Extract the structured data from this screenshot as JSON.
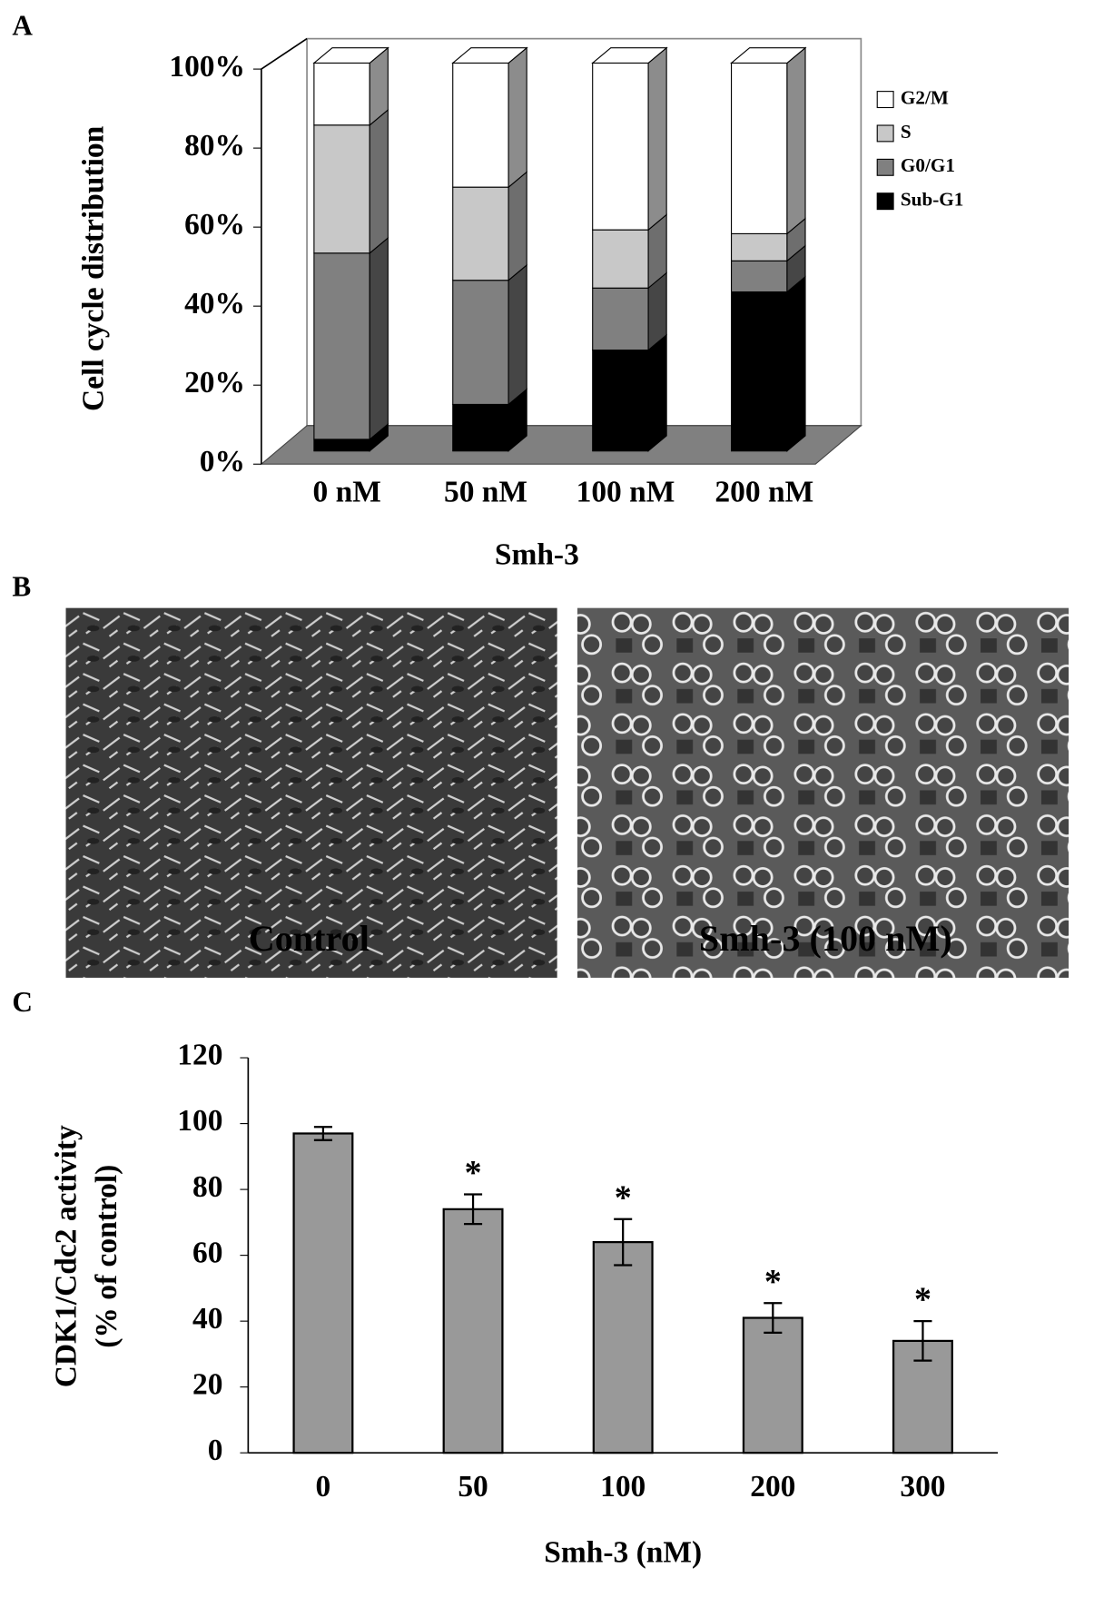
{
  "panel_labels": [
    "A",
    "B",
    "C"
  ],
  "images": [
    {
      "label": "Control"
    },
    {
      "label": "Smh-3 (100 nM)"
    }
  ],
  "chart_data": [
    {
      "type": "stacked-bar-3d",
      "xlabel": "Smh-3",
      "ylabel": "Cell cycle distribution",
      "categories": [
        "0 nM",
        "50 nM",
        "100 nM",
        "200 nM"
      ],
      "series": [
        {
          "name": "G2/M",
          "color": "#ffffff",
          "values": [
            16,
            32,
            43,
            44
          ]
        },
        {
          "name": "S",
          "color": "#c8c8c8",
          "values": [
            33,
            24,
            15,
            7
          ]
        },
        {
          "name": "G0/G1",
          "color": "#808080",
          "values": [
            48,
            32,
            16,
            8
          ]
        },
        {
          "name": "Sub-G1",
          "color": "#000000",
          "values": [
            3,
            12,
            26,
            41
          ]
        }
      ],
      "ylim": [
        0,
        100
      ],
      "yticks": [
        {
          "value": 0,
          "label": "0%"
        },
        {
          "value": 20,
          "label": "20%"
        },
        {
          "value": 40,
          "label": "40%"
        },
        {
          "value": 60,
          "label": "60%"
        },
        {
          "value": 80,
          "label": "80%"
        },
        {
          "value": 100,
          "label": "100%"
        }
      ],
      "legend": "right"
    },
    {
      "type": "bar",
      "xlabel": "Smh-3 (nM)",
      "ylabel": [
        "CDK1/Cdc2 activity",
        "(% of control)"
      ],
      "categories": [
        "0",
        "50",
        "100",
        "200",
        "300"
      ],
      "values": [
        97,
        74,
        64,
        41,
        34
      ],
      "errors": [
        2,
        4.5,
        7,
        4.5,
        6
      ],
      "annotations": [
        null,
        "*",
        "*",
        "*",
        "*"
      ],
      "color": "#999999",
      "ylim": [
        0,
        120
      ],
      "yticks": [
        0,
        20,
        40,
        60,
        80,
        100,
        120
      ]
    }
  ]
}
